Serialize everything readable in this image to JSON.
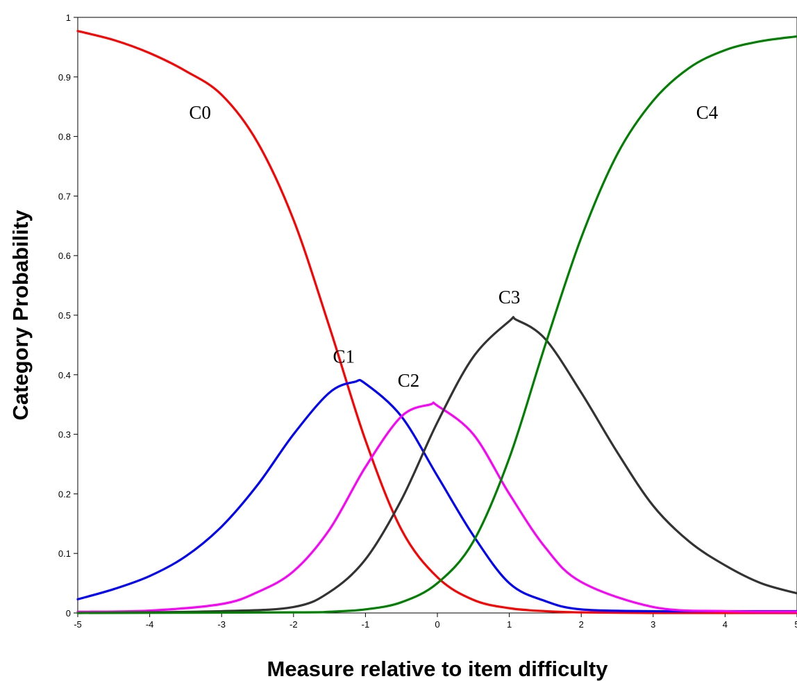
{
  "chart_data": {
    "type": "line",
    "title": "",
    "xlabel": "Measure relative to item difficulty",
    "ylabel": "Category Probability",
    "xlim": [
      -5,
      5
    ],
    "ylim": [
      0,
      1
    ],
    "x_ticks": [
      "-5",
      "-4",
      "-3",
      "-2",
      "-1",
      "0",
      "1",
      "2",
      "3",
      "4",
      "5"
    ],
    "y_ticks": [
      "0",
      "0.1",
      "0.2",
      "0.3",
      "0.4",
      "0.5",
      "0.6",
      "0.7",
      "0.8",
      "0.9",
      "1"
    ],
    "grid": false,
    "legend": "none",
    "series": [
      {
        "name": "C0",
        "color": "#ff0000",
        "label_at": [
          -3.3,
          0.83
        ],
        "x": [
          -5,
          -4.5,
          -4,
          -3.5,
          -3,
          -2.5,
          -2,
          -1.5,
          -1,
          -0.5,
          0,
          0.5,
          1,
          1.5,
          2,
          3,
          4,
          5
        ],
        "y": [
          0.977,
          0.962,
          0.94,
          0.91,
          0.87,
          0.79,
          0.66,
          0.48,
          0.29,
          0.14,
          0.06,
          0.022,
          0.008,
          0.003,
          0.001,
          0,
          0,
          0
        ]
      },
      {
        "name": "C1",
        "color": "#0000ff",
        "label_at": [
          -1.3,
          0.42
        ],
        "x": [
          -5,
          -4.5,
          -4,
          -3.5,
          -3,
          -2.5,
          -2,
          -1.5,
          -1.15,
          -1,
          -0.5,
          0,
          0.5,
          1,
          1.5,
          2,
          3,
          4,
          5
        ],
        "y": [
          0.023,
          0.04,
          0.062,
          0.095,
          0.145,
          0.215,
          0.3,
          0.37,
          0.388,
          0.385,
          0.33,
          0.23,
          0.13,
          0.05,
          0.02,
          0.006,
          0.003,
          0.003,
          0.003
        ]
      },
      {
        "name": "C2",
        "color": "#ff00ff",
        "label_at": [
          -0.4,
          0.38
        ],
        "x": [
          -5,
          -4,
          -3,
          -2.5,
          -2,
          -1.5,
          -1,
          -0.5,
          -0.1,
          0,
          0.5,
          1,
          1.5,
          2,
          3,
          4,
          5
        ],
        "y": [
          0.002,
          0.004,
          0.015,
          0.035,
          0.07,
          0.14,
          0.245,
          0.33,
          0.35,
          0.348,
          0.3,
          0.2,
          0.11,
          0.052,
          0.01,
          0.003,
          0.002
        ]
      },
      {
        "name": "C3",
        "color": "#333333",
        "label_at": [
          1.0,
          0.52
        ],
        "x": [
          -5,
          -3,
          -2,
          -1.5,
          -1,
          -0.5,
          0,
          0.5,
          1,
          1.1,
          1.5,
          2,
          2.5,
          3,
          3.5,
          4,
          4.5,
          5
        ],
        "y": [
          0,
          0.003,
          0.01,
          0.035,
          0.09,
          0.19,
          0.32,
          0.43,
          0.49,
          0.492,
          0.46,
          0.37,
          0.27,
          0.18,
          0.12,
          0.08,
          0.05,
          0.033
        ]
      },
      {
        "name": "C4",
        "color": "#008000",
        "label_at": [
          3.75,
          0.83
        ],
        "x": [
          -5,
          -2,
          -1.5,
          -1,
          -0.5,
          0,
          0.5,
          1,
          1.5,
          2,
          2.5,
          3,
          3.5,
          4,
          4.5,
          5
        ],
        "y": [
          0,
          0.001,
          0.002,
          0.006,
          0.018,
          0.05,
          0.12,
          0.26,
          0.45,
          0.63,
          0.77,
          0.86,
          0.915,
          0.945,
          0.96,
          0.968
        ]
      }
    ]
  }
}
